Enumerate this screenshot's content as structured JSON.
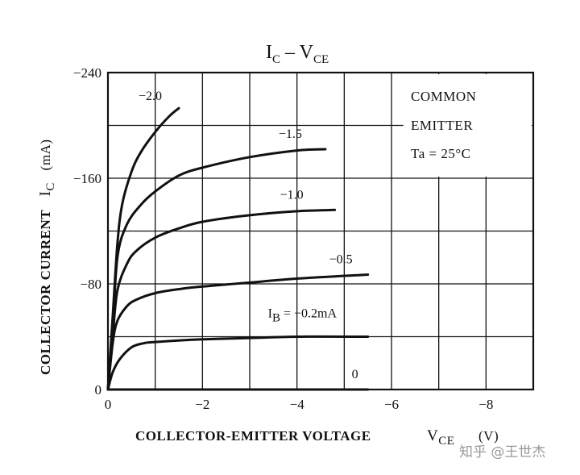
{
  "chart_data": {
    "type": "line",
    "title_main": "I",
    "title_main_sub": "C",
    "title_dash": " – ",
    "title_second": "V",
    "title_second_sub": "CE",
    "xlabel": "COLLECTOR-EMITTER VOLTAGE",
    "xlabel_symbol": "V",
    "xlabel_symbol_sub": "CE",
    "xlabel_unit": "(V)",
    "ylabel": "COLLECTOR CURRENT",
    "ylabel_symbol": "I",
    "ylabel_symbol_sub": "C",
    "ylabel_unit": "(mA)",
    "xlim": [
      0,
      -9
    ],
    "ylim": [
      0,
      -240
    ],
    "x_ticks": [
      0,
      -2,
      -4,
      -6,
      -8
    ],
    "x_tick_labels": [
      "0",
      "−2",
      "−4",
      "−6",
      "−8"
    ],
    "y_ticks": [
      0,
      -80,
      -160,
      -240
    ],
    "y_tick_labels": [
      "0",
      "−80",
      "−160",
      "−240"
    ],
    "grid": true,
    "legend_box": {
      "line1": "COMMON",
      "line2": "EMITTER",
      "line3": "Ta = 25°C"
    },
    "series": [
      {
        "label": "0",
        "x": [
          0,
          -5.5
        ],
        "y": [
          0,
          0
        ]
      },
      {
        "label_prefix": "I",
        "label_sub": "B",
        "label": " = −0.2mA",
        "x": [
          0,
          -0.1,
          -0.25,
          -0.5,
          -0.75,
          -1.0,
          -2.0,
          -3.0,
          -4.0,
          -5.5
        ],
        "y": [
          0,
          -13,
          -23,
          -32,
          -35,
          -36,
          -38,
          -39,
          -40,
          -40
        ]
      },
      {
        "label": "−0.5",
        "x": [
          0,
          -0.1,
          -0.2,
          -0.4,
          -0.6,
          -1.0,
          -1.5,
          -2.0,
          -3.0,
          -4.0,
          -5.5
        ],
        "y": [
          0,
          -35,
          -52,
          -63,
          -68,
          -73,
          -76,
          -78,
          -81,
          -84,
          -87
        ]
      },
      {
        "label": "−1.0",
        "x": [
          0,
          -0.1,
          -0.2,
          -0.4,
          -0.6,
          -1.0,
          -1.5,
          -2.0,
          -3.0,
          -4.0,
          -4.8
        ],
        "y": [
          0,
          -40,
          -75,
          -95,
          -105,
          -115,
          -122,
          -127,
          -132,
          -135,
          -136
        ]
      },
      {
        "label": "−1.5",
        "x": [
          0,
          -0.1,
          -0.2,
          -0.4,
          -0.7,
          -1.0,
          -1.5,
          -2.0,
          -3.0,
          -4.0,
          -4.6
        ],
        "y": [
          0,
          -45,
          -100,
          -125,
          -140,
          -150,
          -162,
          -168,
          -176,
          -181,
          -182
        ]
      },
      {
        "label": "−2.0",
        "x": [
          0,
          -0.1,
          -0.2,
          -0.3,
          -0.5,
          -0.7,
          -1.0,
          -1.3,
          -1.5
        ],
        "y": [
          0,
          -55,
          -110,
          -140,
          -165,
          -180,
          -195,
          -207,
          -213
        ]
      }
    ]
  },
  "watermark": {
    "text": "知乎 @王世杰"
  }
}
